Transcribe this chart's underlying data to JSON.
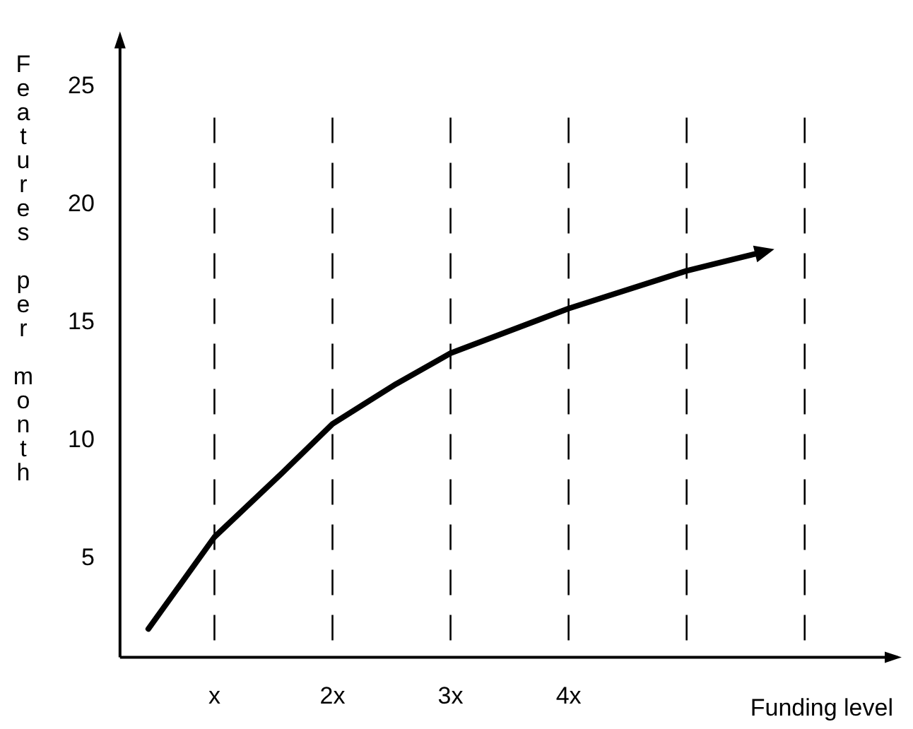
{
  "chart_data": {
    "type": "line",
    "xlabel": "Funding level",
    "ylabel": "Features per month",
    "x": [
      0.44,
      1,
      1.57,
      2,
      2.54,
      3,
      4,
      5,
      5.65
    ],
    "series": [
      {
        "color": "#000000",
        "values": [
          2.0,
          5.9,
          8.6,
          10.7,
          12.4,
          13.7,
          15.6,
          17.2,
          18.0
        ]
      }
    ],
    "xlim": [
      0.2,
      6.75
    ],
    "xticks": [
      {
        "value": 1,
        "label": "x"
      },
      {
        "value": 2,
        "label": "2x"
      },
      {
        "value": 3,
        "label": "3x"
      },
      {
        "value": 4,
        "label": "4x"
      },
      {
        "value": 5,
        "label": null
      },
      {
        "value": 6,
        "label": null
      }
    ],
    "ylim": [
      0.8,
      27
    ],
    "yticks": [
      5,
      10,
      15,
      20,
      25
    ],
    "grid": "x",
    "legend": false,
    "marker": "none",
    "line_style": "solid"
  }
}
